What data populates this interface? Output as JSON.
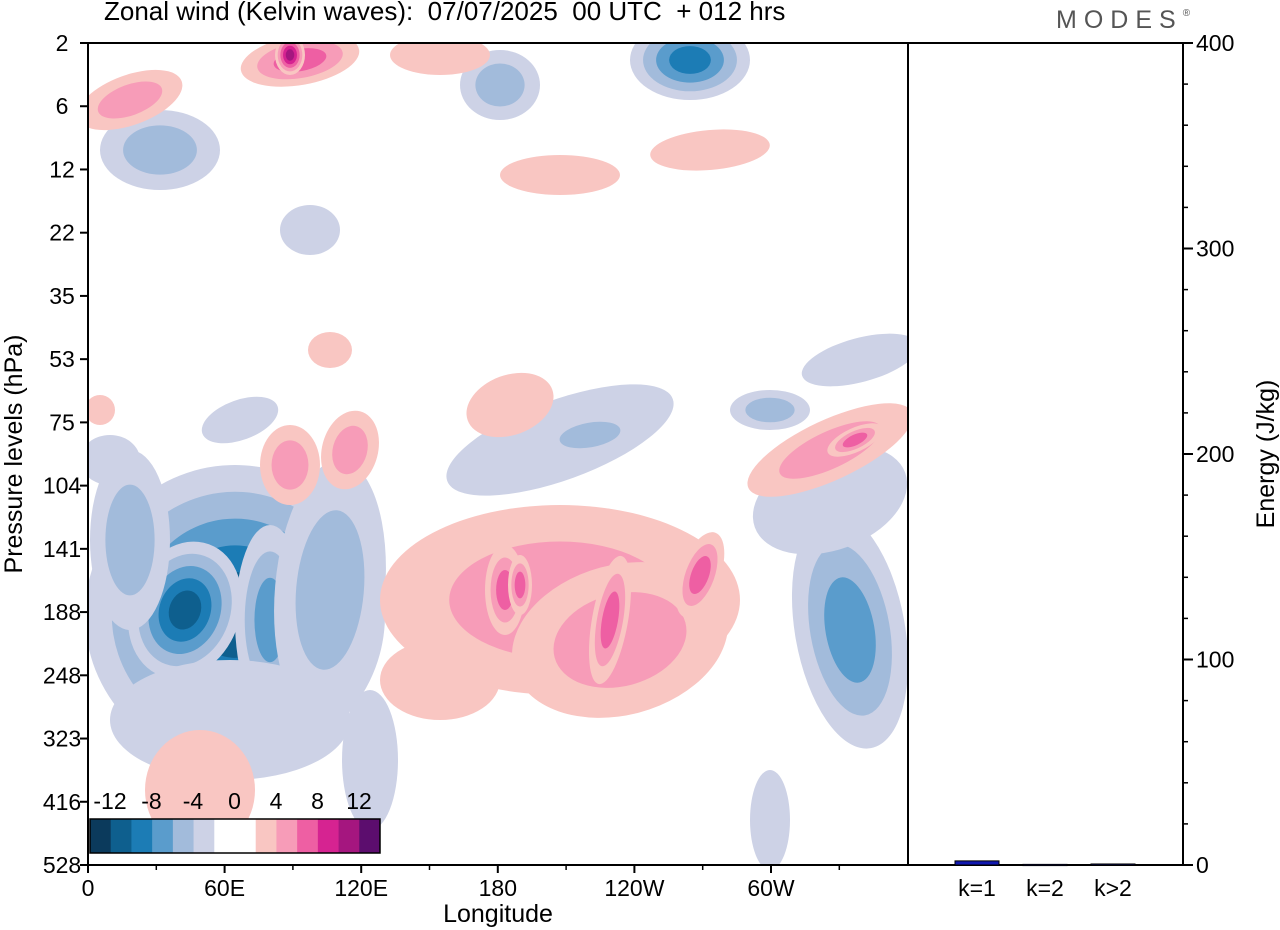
{
  "brand": "MODES",
  "chart_data": [
    {
      "type": "heatmap",
      "title": "Zonal wind (Kelvin waves):  07/07/2025  00 UTC  + 012 hrs",
      "xlabel": "Longitude",
      "ylabel": "Pressure levels (hPa)",
      "x_ticks": [
        "0",
        "60E",
        "120E",
        "180",
        "120W",
        "60W"
      ],
      "y_ticks": [
        "2",
        "6",
        "12",
        "22",
        "35",
        "53",
        "75",
        "104",
        "141",
        "188",
        "248",
        "323",
        "416",
        "528"
      ],
      "colorbar": {
        "labels": [
          "-12",
          "-8",
          "-4",
          "0",
          "4",
          "8",
          "12"
        ],
        "levels": [
          -14,
          -12,
          -10,
          -8,
          -6,
          -4,
          -2,
          0,
          2,
          4,
          6,
          8,
          10,
          12,
          14
        ],
        "colors": [
          "#0b3a5c",
          "#0e5f8e",
          "#1c7cb5",
          "#5a9ccc",
          "#a2bbdb",
          "#cdd2e6",
          "#ffffff",
          "#ffffff",
          "#f9c6c2",
          "#f79cb8",
          "#ee5fa3",
          "#d62391",
          "#a5167f",
          "#5c0d6e"
        ]
      },
      "features": [
        {
          "sign": "negative",
          "level": -12,
          "lon": 45,
          "pressure": 170
        },
        {
          "sign": "negative",
          "level": -10,
          "lon": 80,
          "pressure": 200
        },
        {
          "sign": "positive",
          "level": 8,
          "lon": 195,
          "pressure": 180
        },
        {
          "sign": "positive",
          "level": 8,
          "lon": 270,
          "pressure": 160
        },
        {
          "sign": "positive",
          "level": 8,
          "lon": 320,
          "pressure": 90
        },
        {
          "sign": "negative",
          "level": -10,
          "lon": 260,
          "pressure": 2
        },
        {
          "sign": "positive",
          "level": 10,
          "lon": 80,
          "pressure": 2
        }
      ]
    },
    {
      "type": "bar",
      "ylabel": "Energy (J/kg)",
      "categories": [
        "k=1",
        "k=2",
        "k>2"
      ],
      "values": [
        2,
        0.3,
        0.5
      ],
      "ylim": [
        0,
        400
      ],
      "y_ticks": [
        "0",
        "100",
        "200",
        "300",
        "400"
      ],
      "colors": [
        "#1018b0",
        "#1018b0",
        "#1018b0"
      ]
    }
  ]
}
